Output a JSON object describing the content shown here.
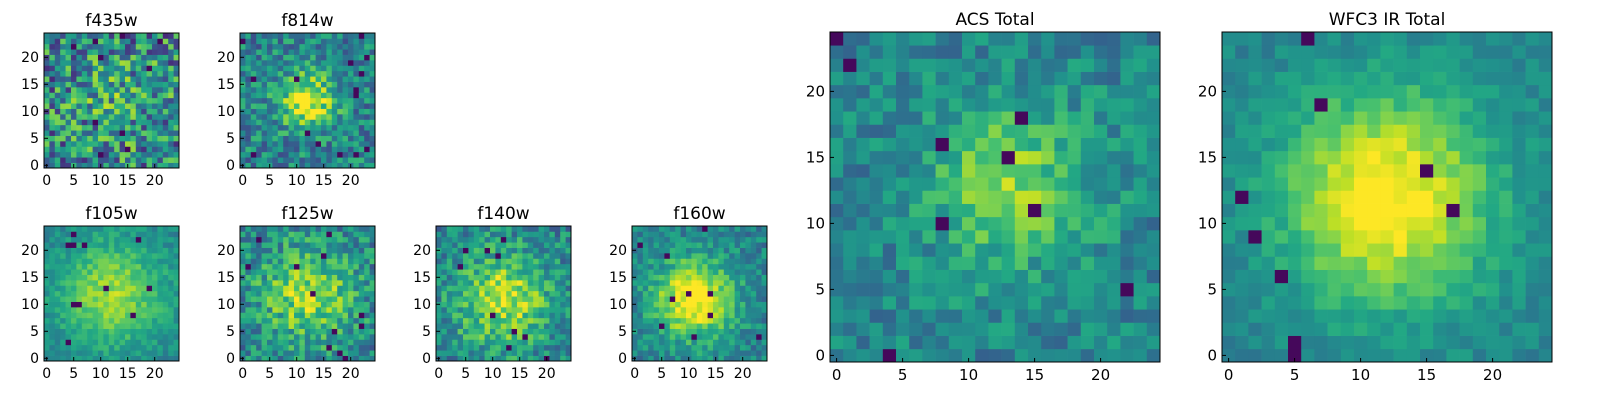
{
  "colormap": "viridis",
  "chart_data": [
    {
      "type": "heatmap",
      "title": "f435w",
      "grid_size": 25,
      "peak": [
        13,
        12
      ],
      "sigma": 6.0,
      "contrast": 0.15,
      "noise": 0.35,
      "seed": 11,
      "xticks": [
        "0",
        "5",
        "10",
        "15",
        "20"
      ],
      "yticks": [
        "0",
        "5",
        "10",
        "15",
        "20"
      ],
      "xlim": [
        0,
        25
      ],
      "ylim": [
        0,
        25
      ]
    },
    {
      "type": "heatmap",
      "title": "f814w",
      "grid_size": 25,
      "peak": [
        12,
        12
      ],
      "sigma": 3.5,
      "contrast": 0.55,
      "noise": 0.22,
      "seed": 22,
      "xticks": [
        "0",
        "5",
        "10",
        "15",
        "20"
      ],
      "yticks": [
        "0",
        "5",
        "10",
        "15",
        "20"
      ],
      "xlim": [
        0,
        25
      ],
      "ylim": [
        0,
        25
      ]
    },
    {
      "type": "heatmap",
      "title": "f105w",
      "grid_size": 25,
      "peak": [
        12,
        12
      ],
      "sigma": 7.0,
      "contrast": 0.4,
      "noise": 0.1,
      "seed": 33,
      "xticks": [
        "0",
        "5",
        "10",
        "15",
        "20"
      ],
      "yticks": [
        "0",
        "5",
        "10",
        "15",
        "20"
      ],
      "xlim": [
        0,
        25
      ],
      "ylim": [
        0,
        25
      ]
    },
    {
      "type": "heatmap",
      "title": "f125w",
      "grid_size": 25,
      "peak": [
        12,
        12
      ],
      "sigma": 6.0,
      "contrast": 0.4,
      "noise": 0.22,
      "seed": 44,
      "xticks": [
        "0",
        "5",
        "10",
        "15",
        "20"
      ],
      "yticks": [
        "0",
        "5",
        "10",
        "15",
        "20"
      ],
      "xlim": [
        0,
        25
      ],
      "ylim": [
        0,
        25
      ]
    },
    {
      "type": "heatmap",
      "title": "f140w",
      "grid_size": 25,
      "peak": [
        12,
        11
      ],
      "sigma": 6.0,
      "contrast": 0.45,
      "noise": 0.2,
      "seed": 55,
      "xticks": [
        "0",
        "5",
        "10",
        "15",
        "20"
      ],
      "yticks": [
        "0",
        "5",
        "10",
        "15",
        "20"
      ],
      "xlim": [
        0,
        25
      ],
      "ylim": [
        0,
        25
      ]
    },
    {
      "type": "heatmap",
      "title": "f160w",
      "grid_size": 25,
      "peak": [
        11,
        11
      ],
      "sigma": 5.0,
      "contrast": 0.6,
      "noise": 0.15,
      "seed": 66,
      "xticks": [
        "0",
        "5",
        "10",
        "15",
        "20"
      ],
      "yticks": [
        "0",
        "5",
        "10",
        "15",
        "20"
      ],
      "xlim": [
        0,
        25
      ],
      "ylim": [
        0,
        25
      ]
    },
    {
      "type": "heatmap",
      "title": "ACS Total",
      "grid_size": 25,
      "peak": [
        13,
        13
      ],
      "sigma": 4.5,
      "contrast": 0.35,
      "noise": 0.15,
      "seed": 77,
      "xticks": [
        "0",
        "5",
        "10",
        "15",
        "20"
      ],
      "yticks": [
        "0",
        "5",
        "10",
        "15",
        "20"
      ],
      "xlim": [
        0,
        25
      ],
      "ylim": [
        0,
        25
      ]
    },
    {
      "type": "heatmap",
      "title": "WFC3 IR Total",
      "grid_size": 25,
      "peak": [
        12,
        12
      ],
      "sigma": 5.5,
      "contrast": 0.6,
      "noise": 0.08,
      "seed": 88,
      "xticks": [
        "0",
        "5",
        "10",
        "15",
        "20"
      ],
      "yticks": [
        "0",
        "5",
        "10",
        "15",
        "20"
      ],
      "xlim": [
        0,
        25
      ],
      "ylim": [
        0,
        25
      ]
    }
  ]
}
